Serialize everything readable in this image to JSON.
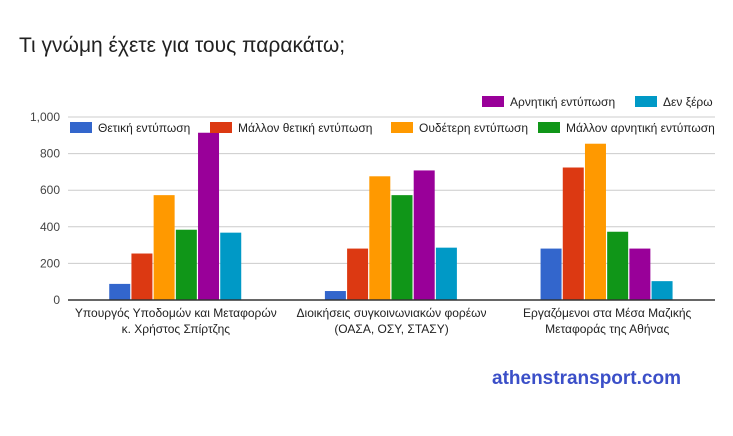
{
  "chart_data": {
    "type": "bar",
    "title": "Τι γνώμη έχετε για τους παρακάτω;",
    "categories": [
      [
        "Υπουργός Υποδομών και Μεταφορών",
        "κ. Χρήστος Σπίρτζης"
      ],
      [
        "Διοικήσεις συγκοινωνιακών φορέων",
        "(ΟΑΣΑ, ΟΣΥ, ΣΤΑΣΥ)"
      ],
      [
        "Εργαζόμενοι στα Μέσα Μαζικής",
        "Μεταφοράς της Αθήνας"
      ]
    ],
    "series": [
      {
        "name": "Θετική εντύπωση",
        "color": "#3366cc",
        "values": [
          88,
          49,
          281
        ]
      },
      {
        "name": "Μάλλον θετική εντύπωση",
        "color": "#dc3912",
        "values": [
          254,
          281,
          724
        ]
      },
      {
        "name": "Ουδέτερη εντύπωση",
        "color": "#ff9900",
        "values": [
          573,
          676,
          854
        ]
      },
      {
        "name": "Μάλλον αρνητική εντύπωση",
        "color": "#109618",
        "values": [
          384,
          573,
          373
        ]
      },
      {
        "name": "Αρνητική εντύπωση",
        "color": "#990099",
        "values": [
          914,
          708,
          281
        ]
      },
      {
        "name": "Δεν ξέρω",
        "color": "#0099c6",
        "values": [
          368,
          286,
          103
        ]
      }
    ],
    "ylim": [
      0,
      1000
    ],
    "yticks": [
      "0",
      "200",
      "400",
      "600",
      "800",
      "1,000"
    ],
    "grid": true,
    "legend": "top"
  },
  "watermark": "athenstransport.com"
}
